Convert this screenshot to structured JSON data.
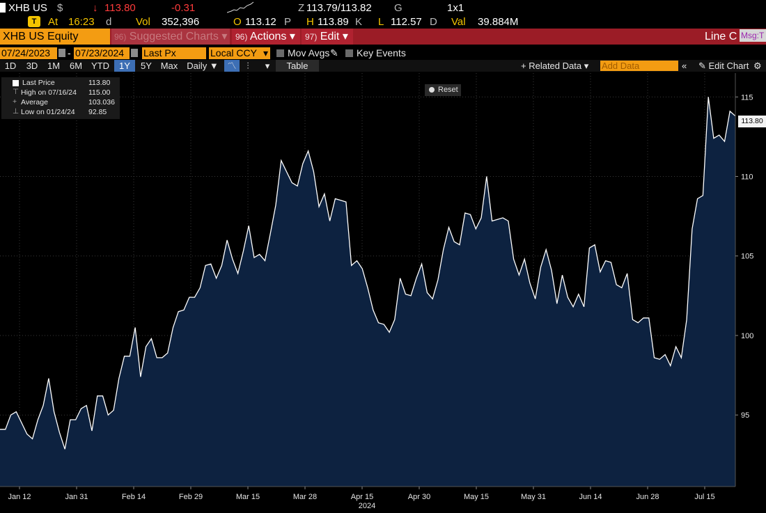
{
  "quote": {
    "ticker": "XHB US",
    "currency": "$",
    "arrow": "↓",
    "last": "113.80",
    "change": "-0.31",
    "open_prefix": "Z",
    "bid_ask": "113.79/113.82",
    "bid_ask_suffix": "G",
    "size": "1x1",
    "at_badge": "T",
    "at_label": "At",
    "time": "16:23",
    "time_suffix": "d",
    "vol_label": "Vol",
    "vol": "352,396",
    "open_label": "O",
    "open": "113.12",
    "open_suffix": "P",
    "high_label": "H",
    "high": "113.89",
    "high_suffix": "K",
    "low_label": "L",
    "low": "112.57",
    "low_suffix": "D",
    "val_label": "Val",
    "val": "39.884M"
  },
  "toolbar": {
    "security": "XHB US Equity",
    "suggested_num": "96)",
    "suggested": "Suggested Charts",
    "actions_num": "96)",
    "actions": "Actions",
    "edit_num": "97)",
    "edit": "Edit",
    "chart_type": "Line C",
    "msg": "Msg:T"
  },
  "controls": {
    "start_date": "07/24/2023",
    "end_date": "07/23/2024",
    "field": "Last Px",
    "currency": "Local CCY",
    "mov_avgs": "Mov Avgs",
    "key_events": "Key Events"
  },
  "periods": [
    "1D",
    "3D",
    "1M",
    "6M",
    "YTD",
    "1Y",
    "5Y",
    "Max"
  ],
  "active_period": "1Y",
  "frequency": "Daily",
  "table_label": "Table",
  "related_data": "+ Related Data",
  "add_data_placeholder": "Add Data",
  "edit_chart": "Edit Chart",
  "reset_label": "Reset",
  "legend": {
    "last_price_label": "Last Price",
    "last_price": "113.80",
    "high_label": "High on 07/16/24",
    "high": "115.00",
    "average_label": "Average",
    "average": "103.036",
    "low_label": "Low on 01/24/24",
    "low": "92.85"
  },
  "last_price_badge": "113.80",
  "colors": {
    "area_fill": "#0d2240",
    "line": "#ffffff",
    "header_red": "#9b1c26",
    "field_orange": "#f39c12",
    "active_blue": "#3d6fb5"
  },
  "chart_data": {
    "type": "area",
    "title": "",
    "xlabel": "2024",
    "ylabel": "",
    "ylim": [
      90.5,
      116.5
    ],
    "yticks": [
      95,
      100,
      105,
      110,
      115
    ],
    "xtick_labels": [
      "Jan 12",
      "Jan 31",
      "Feb 14",
      "Feb 29",
      "Mar 15",
      "Mar 28",
      "Apr 15",
      "Apr 30",
      "May 15",
      "May 31",
      "Jun 14",
      "Jun 28",
      "Jul 15"
    ],
    "x_label_year": "2024",
    "grid": true,
    "series": [
      {
        "values": [
          94.1,
          94.1,
          95.0,
          95.2,
          94.5,
          93.8,
          93.5,
          94.7,
          95.6,
          97.3,
          95.2,
          93.9,
          92.85,
          94.7,
          94.7,
          95.4,
          95.6,
          94.0,
          96.2,
          96.2,
          95.0,
          95.3,
          97.3,
          98.7,
          98.7,
          100.5,
          97.4,
          99.3,
          99.8,
          98.6,
          98.6,
          98.9,
          100.5,
          101.5,
          101.6,
          102.4,
          102.4,
          103.0,
          104.4,
          104.5,
          103.6,
          104.4,
          106.0,
          104.8,
          103.9,
          105.3,
          106.9,
          104.9,
          105.1,
          104.7,
          106.4,
          108.2,
          111.0,
          110.3,
          109.6,
          109.4,
          110.8,
          111.6,
          110.3,
          108.1,
          108.9,
          107.2,
          108.6,
          108.5,
          108.4,
          104.4,
          104.7,
          104.2,
          103.0,
          101.6,
          100.8,
          100.7,
          100.2,
          101.0,
          103.6,
          102.6,
          102.5,
          103.6,
          104.5,
          102.7,
          102.3,
          103.5,
          105.4,
          106.8,
          105.9,
          105.7,
          107.7,
          107.6,
          106.7,
          107.4,
          110.0,
          107.2,
          107.3,
          107.4,
          107.2,
          104.8,
          103.8,
          104.8,
          103.3,
          102.3,
          104.3,
          105.4,
          104.1,
          102.0,
          103.8,
          102.4,
          101.8,
          102.6,
          101.8,
          105.5,
          105.7,
          104.0,
          104.7,
          104.6,
          103.2,
          103.0,
          103.9,
          101.0,
          100.8,
          101.1,
          101.1,
          98.6,
          98.5,
          98.8,
          98.1,
          99.3,
          98.6,
          101.0,
          106.7,
          108.6,
          108.8,
          115.0,
          112.4,
          112.6,
          112.2,
          114.1,
          113.8
        ]
      }
    ]
  }
}
